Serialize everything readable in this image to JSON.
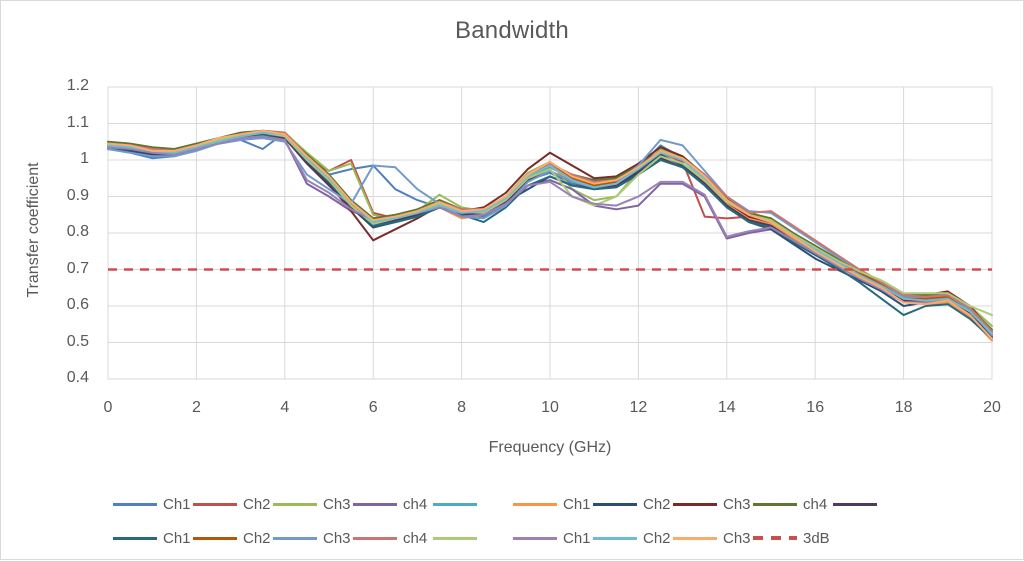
{
  "chart": {
    "title": "Bandwidth",
    "xlabel": "Frequency (GHz)",
    "ylabel": "Transfer coefficient"
  },
  "chart_data": {
    "type": "line",
    "title": "Bandwidth",
    "xlabel": "Frequency (GHz)",
    "ylabel": "Transfer coefficient",
    "xlim": [
      0,
      20
    ],
    "ylim": [
      0.4,
      1.2
    ],
    "grid": true,
    "gridline_color": "#d9d9d9",
    "text_color": "#595959",
    "legend_position": "bottom",
    "legend_rows": [
      10,
      9
    ],
    "x_start": 0,
    "x_step": 0.5,
    "x_ticks": [
      0,
      2,
      4,
      6,
      8,
      10,
      12,
      14,
      16,
      18,
      20
    ],
    "x_tick_labels": [
      "0",
      "2",
      "4",
      "6",
      "8",
      "10",
      "12",
      "14",
      "16",
      "18",
      "20"
    ],
    "y_ticks": [
      1.2,
      1.1,
      1.0,
      0.9,
      0.8,
      0.7,
      0.6,
      0.5,
      0.4
    ],
    "y_tick_labels": [
      "1.2",
      "1.1",
      "1",
      "0.9",
      "0.8",
      "0.7",
      "0.6",
      "0.5",
      "0.4"
    ],
    "threshold": {
      "label": "3dB",
      "value": 0.7,
      "color": "#c9504e",
      "dash": true
    },
    "series": [
      {
        "name": "Ch1",
        "color": "#4f81bd",
        "values": [
          1.03,
          1.02,
          1.005,
          1.01,
          1.03,
          1.045,
          1.055,
          1.03,
          1.075,
          1.015,
          0.96,
          0.975,
          0.985,
          0.92,
          0.89,
          0.87,
          0.85,
          0.845,
          0.88,
          0.945,
          0.965,
          0.935,
          0.92,
          0.93,
          0.98,
          1.04,
          1.005,
          0.95,
          0.9,
          0.85,
          0.84,
          0.8,
          0.76,
          0.725,
          0.69,
          0.66,
          0.62,
          0.625,
          0.63,
          0.59,
          0.52
        ]
      },
      {
        "name": "Ch2",
        "color": "#c0504d",
        "values": [
          1.04,
          1.035,
          1.025,
          1.02,
          1.035,
          1.05,
          1.065,
          1.075,
          1.07,
          1.005,
          0.97,
          1.0,
          0.855,
          0.84,
          0.855,
          0.88,
          0.85,
          0.86,
          0.9,
          0.96,
          0.99,
          0.955,
          0.93,
          0.94,
          0.975,
          1.02,
          0.995,
          0.845,
          0.84,
          0.845,
          0.82,
          0.785,
          0.75,
          0.715,
          0.685,
          0.655,
          0.615,
          0.62,
          0.63,
          0.585,
          0.52
        ]
      },
      {
        "name": "Ch3",
        "color": "#9bbb59",
        "values": [
          1.045,
          1.04,
          1.03,
          1.025,
          1.04,
          1.055,
          1.07,
          1.08,
          1.075,
          1.02,
          0.97,
          0.99,
          0.85,
          0.835,
          0.86,
          0.905,
          0.87,
          0.86,
          0.9,
          0.965,
          0.995,
          0.92,
          0.89,
          0.9,
          0.97,
          1.03,
          1.01,
          0.96,
          0.895,
          0.855,
          0.835,
          0.795,
          0.76,
          0.725,
          0.695,
          0.665,
          0.63,
          0.63,
          0.635,
          0.6,
          0.545
        ]
      },
      {
        "name": "ch4",
        "color": "#8064a2",
        "values": [
          1.035,
          1.025,
          1.015,
          1.015,
          1.03,
          1.045,
          1.055,
          1.065,
          1.055,
          0.935,
          0.9,
          0.86,
          0.84,
          0.85,
          0.86,
          0.875,
          0.85,
          0.855,
          0.885,
          0.93,
          0.945,
          0.92,
          0.875,
          0.865,
          0.875,
          0.935,
          0.935,
          0.9,
          0.785,
          0.8,
          0.81,
          0.775,
          0.74,
          0.71,
          0.68,
          0.65,
          0.61,
          0.615,
          0.62,
          0.58,
          0.515
        ]
      },
      {
        "name": "",
        "color": "#4bacc6",
        "values": [
          1.04,
          1.035,
          1.025,
          1.02,
          1.035,
          1.055,
          1.065,
          1.07,
          1.065,
          1.0,
          0.945,
          0.88,
          0.825,
          0.84,
          0.855,
          0.88,
          0.86,
          0.855,
          0.89,
          0.95,
          0.98,
          0.95,
          0.93,
          0.94,
          0.975,
          1.01,
          0.99,
          0.945,
          0.89,
          0.85,
          0.835,
          0.795,
          0.755,
          0.72,
          0.69,
          0.655,
          0.62,
          0.62,
          0.625,
          0.585,
          0.53
        ]
      },
      {
        "name": "Ch1",
        "color": "#f79646",
        "values": [
          1.04,
          1.03,
          1.02,
          1.02,
          1.04,
          1.055,
          1.07,
          1.075,
          1.07,
          1.005,
          0.95,
          0.88,
          0.835,
          0.845,
          0.85,
          0.87,
          0.84,
          0.85,
          0.89,
          0.955,
          0.985,
          0.94,
          0.94,
          0.95,
          0.97,
          1.005,
          0.99,
          0.94,
          0.88,
          0.84,
          0.825,
          0.785,
          0.75,
          0.715,
          0.68,
          0.65,
          0.61,
          0.605,
          0.61,
          0.57,
          0.505
        ]
      },
      {
        "name": "Ch2",
        "color": "#2c4d75",
        "values": [
          1.03,
          1.025,
          1.015,
          1.015,
          1.03,
          1.05,
          1.06,
          1.07,
          1.06,
          0.995,
          0.935,
          0.87,
          0.815,
          0.83,
          0.845,
          0.87,
          0.85,
          0.85,
          0.885,
          0.92,
          0.955,
          0.93,
          0.92,
          0.93,
          0.97,
          1.015,
          0.985,
          0.935,
          0.875,
          0.83,
          0.81,
          0.77,
          0.73,
          0.7,
          0.67,
          0.64,
          0.6,
          0.61,
          0.615,
          0.575,
          0.515
        ]
      },
      {
        "name": "Ch3",
        "color": "#772c2a",
        "values": [
          1.04,
          1.03,
          1.02,
          1.015,
          1.035,
          1.05,
          1.065,
          1.075,
          1.065,
          1.0,
          0.935,
          0.86,
          0.78,
          0.81,
          0.84,
          0.875,
          0.86,
          0.87,
          0.91,
          0.975,
          1.02,
          0.985,
          0.95,
          0.955,
          0.99,
          1.035,
          1.01,
          0.955,
          0.885,
          0.845,
          0.83,
          0.79,
          0.755,
          0.72,
          0.69,
          0.66,
          0.625,
          0.63,
          0.64,
          0.6,
          0.53
        ]
      },
      {
        "name": "ch4",
        "color": "#5f7530",
        "values": [
          1.05,
          1.045,
          1.035,
          1.03,
          1.045,
          1.06,
          1.075,
          1.08,
          1.07,
          1.015,
          0.96,
          0.89,
          0.84,
          0.85,
          0.865,
          0.89,
          0.865,
          0.86,
          0.895,
          0.955,
          0.985,
          0.96,
          0.945,
          0.95,
          0.985,
          1.025,
          1.0,
          0.955,
          0.895,
          0.855,
          0.84,
          0.8,
          0.765,
          0.73,
          0.7,
          0.665,
          0.63,
          0.63,
          0.635,
          0.595,
          0.535
        ]
      },
      {
        "name": "",
        "color": "#4d3b62",
        "values": [
          1.035,
          1.03,
          1.02,
          1.02,
          1.035,
          1.05,
          1.06,
          1.07,
          1.06,
          0.99,
          0.93,
          0.87,
          0.82,
          0.835,
          0.85,
          0.87,
          0.85,
          0.85,
          0.885,
          0.945,
          0.97,
          0.94,
          0.92,
          0.93,
          0.965,
          1.005,
          0.98,
          0.935,
          0.875,
          0.835,
          0.82,
          0.78,
          0.745,
          0.71,
          0.68,
          0.65,
          0.615,
          0.615,
          0.62,
          0.58,
          0.52
        ]
      },
      {
        "name": "Ch1",
        "color": "#276a7c",
        "values": [
          1.045,
          1.04,
          1.03,
          1.025,
          1.04,
          1.055,
          1.065,
          1.07,
          1.065,
          1.0,
          0.94,
          0.875,
          0.82,
          0.83,
          0.845,
          0.87,
          0.85,
          0.83,
          0.87,
          0.93,
          0.955,
          0.93,
          0.92,
          0.925,
          0.96,
          1.0,
          0.98,
          0.93,
          0.87,
          0.83,
          0.815,
          0.775,
          0.74,
          0.705,
          0.665,
          0.62,
          0.575,
          0.6,
          0.605,
          0.565,
          0.51
        ]
      },
      {
        "name": "Ch2",
        "color": "#b65708",
        "values": [
          1.04,
          1.035,
          1.025,
          1.02,
          1.035,
          1.055,
          1.07,
          1.075,
          1.07,
          1.005,
          0.95,
          0.885,
          0.83,
          0.84,
          0.855,
          0.88,
          0.855,
          0.86,
          0.895,
          0.96,
          0.99,
          0.95,
          0.93,
          0.94,
          0.98,
          1.02,
          1.0,
          0.95,
          0.89,
          0.85,
          0.835,
          0.79,
          0.755,
          0.72,
          0.69,
          0.66,
          0.625,
          0.62,
          0.625,
          0.59,
          0.525
        ]
      },
      {
        "name": "Ch3",
        "color": "#729aca",
        "values": [
          1.03,
          1.02,
          1.01,
          1.01,
          1.025,
          1.045,
          1.055,
          1.06,
          1.05,
          0.96,
          0.92,
          0.88,
          0.985,
          0.98,
          0.92,
          0.88,
          0.845,
          0.84,
          0.875,
          0.94,
          0.97,
          0.94,
          0.925,
          0.935,
          0.985,
          1.055,
          1.04,
          0.97,
          0.9,
          0.86,
          0.855,
          0.815,
          0.775,
          0.735,
          0.7,
          0.665,
          0.625,
          0.625,
          0.63,
          0.59,
          0.52
        ]
      },
      {
        "name": "ch4",
        "color": "#cd7371",
        "values": [
          1.045,
          1.04,
          1.03,
          1.025,
          1.04,
          1.055,
          1.07,
          1.08,
          1.075,
          1.01,
          0.955,
          0.885,
          0.83,
          0.845,
          0.86,
          0.885,
          0.865,
          0.865,
          0.9,
          0.96,
          0.99,
          0.96,
          0.94,
          0.945,
          0.98,
          1.02,
          1.005,
          0.96,
          0.9,
          0.855,
          0.86,
          0.82,
          0.78,
          0.74,
          0.7,
          0.665,
          0.63,
          0.625,
          0.63,
          0.595,
          0.53
        ]
      },
      {
        "name": "",
        "color": "#afc97a",
        "values": [
          1.04,
          1.035,
          1.025,
          1.02,
          1.035,
          1.055,
          1.065,
          1.075,
          1.065,
          1.0,
          0.945,
          0.875,
          0.825,
          0.84,
          0.855,
          0.88,
          0.86,
          0.855,
          0.89,
          0.95,
          0.975,
          0.9,
          0.875,
          0.9,
          0.96,
          1.01,
          0.99,
          0.945,
          0.885,
          0.85,
          0.835,
          0.795,
          0.76,
          0.725,
          0.695,
          0.67,
          0.635,
          0.635,
          0.635,
          0.6,
          0.575
        ]
      },
      {
        "name": "Ch1",
        "color": "#9983b5",
        "values": [
          1.035,
          1.03,
          1.02,
          1.015,
          1.03,
          1.045,
          1.06,
          1.065,
          1.055,
          0.945,
          0.91,
          0.865,
          0.835,
          0.845,
          0.855,
          0.87,
          0.845,
          0.85,
          0.88,
          0.93,
          0.94,
          0.9,
          0.88,
          0.875,
          0.9,
          0.94,
          0.94,
          0.905,
          0.79,
          0.805,
          0.815,
          0.78,
          0.745,
          0.71,
          0.675,
          0.645,
          0.61,
          0.61,
          0.615,
          0.575,
          0.51
        ]
      },
      {
        "name": "Ch2",
        "color": "#6fbcd1",
        "values": [
          1.04,
          1.035,
          1.025,
          1.02,
          1.035,
          1.05,
          1.065,
          1.075,
          1.07,
          1.005,
          0.95,
          0.885,
          0.83,
          0.84,
          0.855,
          0.875,
          0.855,
          0.86,
          0.895,
          0.955,
          0.985,
          0.945,
          0.925,
          0.935,
          0.975,
          1.02,
          1.0,
          0.95,
          0.89,
          0.85,
          0.83,
          0.79,
          0.755,
          0.72,
          0.685,
          0.655,
          0.62,
          0.615,
          0.62,
          0.585,
          0.525
        ]
      },
      {
        "name": "Ch3",
        "color": "#f9ac6b",
        "values": [
          1.045,
          1.04,
          1.025,
          1.025,
          1.04,
          1.06,
          1.07,
          1.08,
          1.07,
          1.01,
          0.955,
          0.885,
          0.835,
          0.845,
          0.86,
          0.885,
          0.86,
          0.865,
          0.9,
          0.96,
          0.995,
          0.955,
          0.935,
          0.945,
          0.98,
          1.025,
          1.005,
          0.955,
          0.89,
          0.85,
          0.83,
          0.79,
          0.75,
          0.715,
          0.68,
          0.65,
          0.61,
          0.605,
          0.615,
          0.575,
          0.51
        ]
      }
    ]
  }
}
